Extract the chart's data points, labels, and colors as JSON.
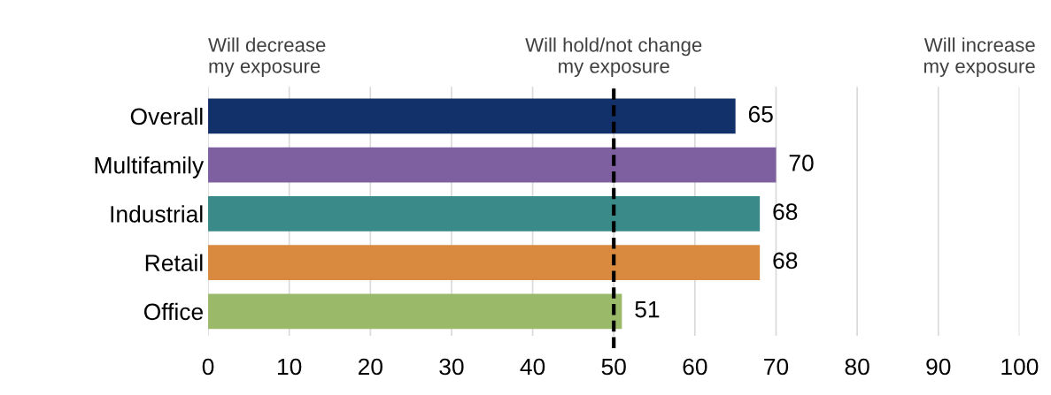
{
  "chart_data": {
    "type": "bar",
    "orientation": "horizontal",
    "categories": [
      "Overall",
      "Multifamily",
      "Industrial",
      "Retail",
      "Office"
    ],
    "values": [
      65,
      70,
      68,
      68,
      51
    ],
    "colors": [
      "#12306a",
      "#7e5fa0",
      "#3a8a8a",
      "#d98a3e",
      "#9aba6a"
    ],
    "xlim": [
      0,
      100
    ],
    "xticks": [
      0,
      10,
      20,
      30,
      40,
      50,
      60,
      70,
      80,
      90,
      100
    ],
    "grid": "x",
    "data_labels": true,
    "ref_lines": [
      {
        "axis": "x",
        "value": 50,
        "label": "Will hold/not change\nmy exposure",
        "color": "#000000",
        "line_style": "dashed"
      }
    ],
    "annotations": [
      "Will decrease\nmy exposure",
      "Will increase\nmy exposure"
    ]
  }
}
